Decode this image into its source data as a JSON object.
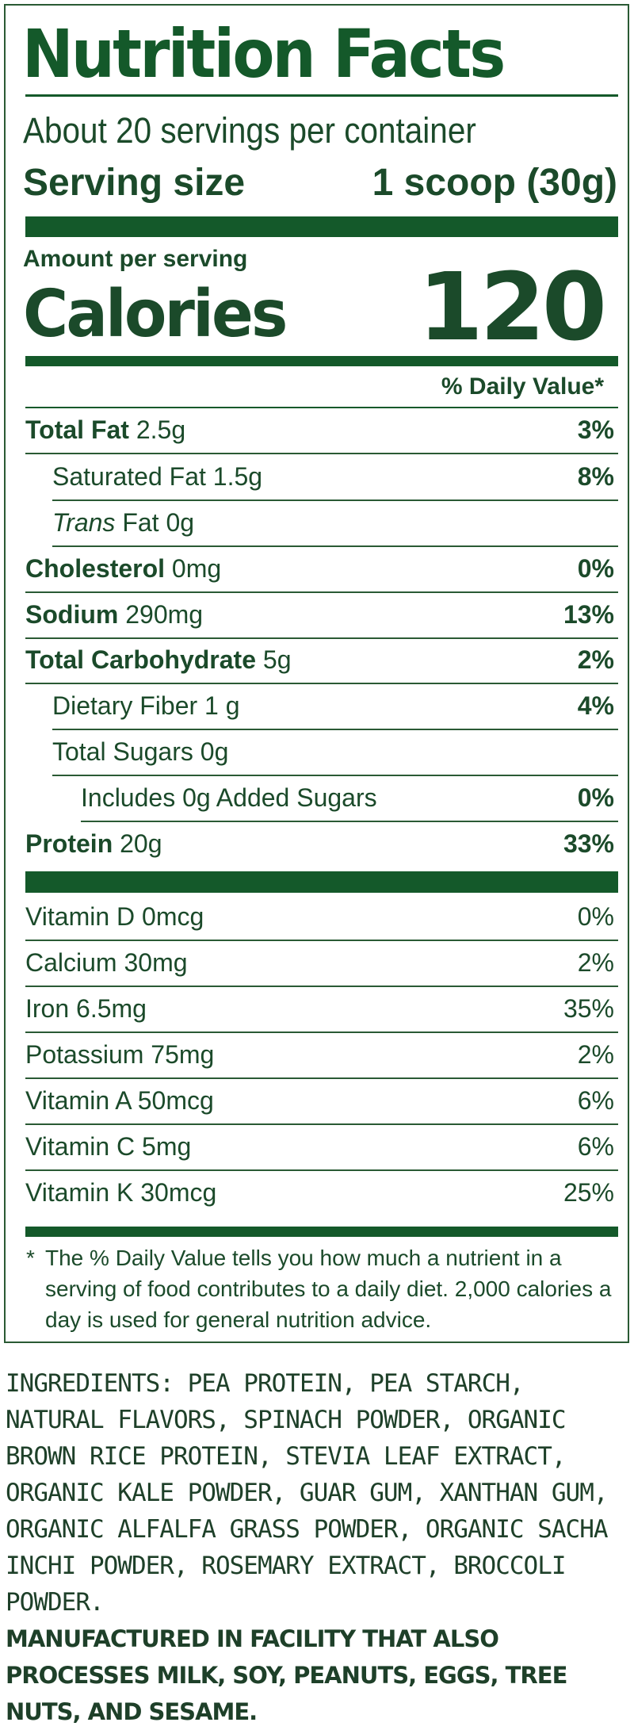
{
  "label": {
    "title": "Nutrition Facts",
    "servings_per_container": "About 20 servings per container",
    "serving_size_label": "Serving size",
    "serving_size_value": "1 scoop (30g)",
    "amount_per_serving": "Amount per serving",
    "calories_label": "Calories",
    "calories_value": "120",
    "daily_value_header": "% Daily Value*",
    "rows": [
      {
        "bold": "Total Fat",
        "text": " 2.5g",
        "pct": "3%"
      },
      {
        "bold": "",
        "text": "Saturated Fat 1.5g",
        "pct": "8%"
      },
      {
        "italic": "Trans",
        "text": " Fat 0g",
        "pct": ""
      },
      {
        "bold": "Cholesterol",
        "text": " 0mg",
        "pct": "0%"
      },
      {
        "bold": "Sodium",
        "text": " 290mg",
        "pct": "13%"
      },
      {
        "bold": "Total Carbohydrate",
        "text": " 5g",
        "pct": "2%"
      },
      {
        "bold": "",
        "text": "Dietary Fiber 1 g",
        "pct": "4%"
      },
      {
        "bold": "",
        "text": "Total Sugars 0g",
        "pct": ""
      },
      {
        "bold": "",
        "text": "Includes 0g Added Sugars",
        "pct": "0%"
      },
      {
        "bold": "Protein",
        "text": " 20g",
        "pct": "33%"
      }
    ],
    "vitamins": [
      {
        "text": "Vitamin D 0mcg",
        "pct": "0%"
      },
      {
        "text": "Calcium 30mg",
        "pct": "2%"
      },
      {
        "text": "Iron 6.5mg",
        "pct": "35%"
      },
      {
        "text": "Potassium 75mg",
        "pct": "2%"
      },
      {
        "text": "Vitamin A 50mcg",
        "pct": "6%"
      },
      {
        "text": "Vitamin C 5mg",
        "pct": "6%"
      },
      {
        "text": "Vitamin K 30mcg",
        "pct": "25%"
      }
    ],
    "footnote_asterisk": "*",
    "footnote": "The % Daily Value tells you how much a nutrient in a serving of food contributes to a daily diet. 2,000 calories a day is used for general nutrition advice."
  },
  "ingredients": {
    "label": "INGREDIENTS:",
    "text": " PEA PROTEIN, PEA STARCH, NATURAL FLAVORS, SPINACH POWDER, ORGANIC BROWN RICE PROTEIN, STEVIA LEAF EXTRACT, ORGANIC KALE POWDER, GUAR GUM, XANTHAN GUM, ORGANIC ALFALFA GRASS POWDER, ORGANIC SACHA INCHI POWDER, ROSEMARY EXTRACT, BROCCOLI POWDER.",
    "allergen": "MANUFACTURED IN FACILITY THAT ALSO PROCESSES MILK, SOY, PEANUTS, EGGS, TREE NUTS, AND SESAME."
  },
  "colors": {
    "brand_green": "#14592a",
    "text_green": "#1b4a2a"
  }
}
